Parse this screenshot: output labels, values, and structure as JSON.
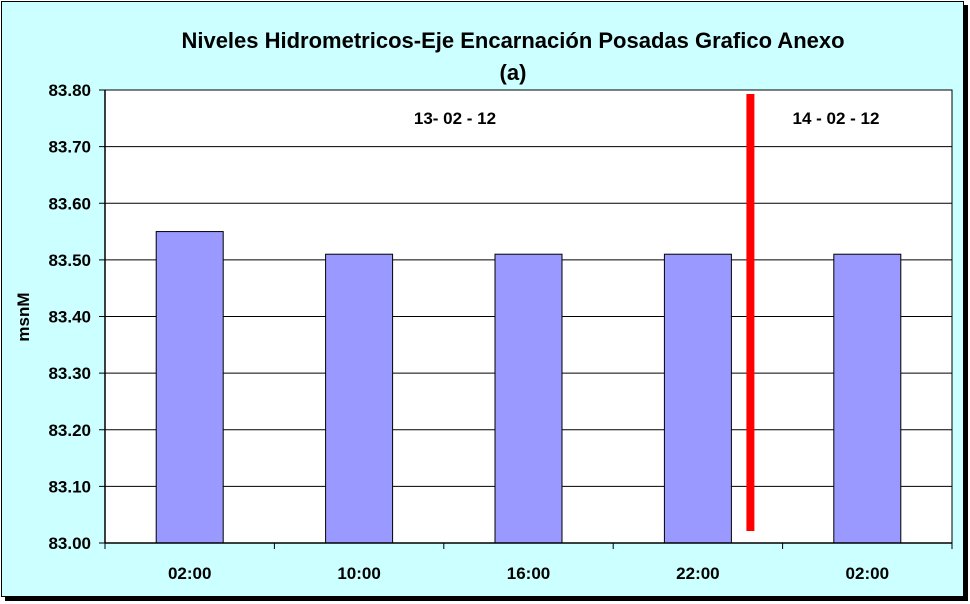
{
  "chart_data": {
    "type": "bar",
    "title": "Niveles Hidrometricos-Eje Encarnación Posadas Grafico Anexo",
    "subtitle": "(a)",
    "xlabel": "",
    "ylabel": "msnM",
    "categories": [
      "02:00",
      "10:00",
      "16:00",
      "22:00",
      "02:00"
    ],
    "values": [
      83.55,
      83.51,
      83.51,
      83.51,
      83.51
    ],
    "ylim": [
      83.0,
      83.8
    ],
    "yticks": [
      "83.00",
      "83.10",
      "83.20",
      "83.30",
      "83.40",
      "83.50",
      "83.60",
      "83.70",
      "83.80"
    ],
    "grid": true,
    "annotations": [
      "13- 02 - 12",
      "14 - 02 - 12"
    ],
    "colors": {
      "bar": "#9999ff",
      "plot_bg": "#ffffff",
      "chart_bg": "#ccffff",
      "divider": "#ff0000"
    }
  }
}
